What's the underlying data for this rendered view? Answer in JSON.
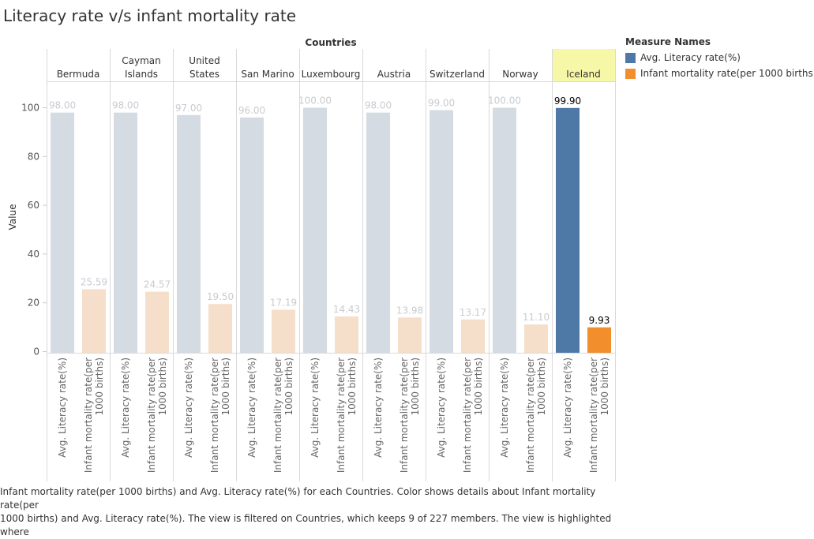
{
  "title": "Literacy rate v/s infant mortality rate",
  "header_label": "Countries",
  "colors": {
    "literacy": "#4e79a7",
    "mortality": "#f28e2b",
    "literacy_faded": "#d4dbe3",
    "mortality_faded": "#f5dfcb",
    "highlight_header": "#f7f7a8"
  },
  "legend": {
    "title": "Measure Names",
    "items": [
      {
        "label": "Avg. Literacy rate(%)",
        "color": "#4e79a7"
      },
      {
        "label": "Infant mortality rate(per 1000 births)",
        "color": "#f28e2b"
      }
    ]
  },
  "caption": [
    "Infant mortality rate(per 1000 births) and Avg. Literacy rate(%) for each Countries.  Color shows details about Infant mortality rate(per",
    "1000 births) and Avg. Literacy rate(%). The view is filtered on Countries, which keeps 9 of 227 members. The view is highlighted where"
  ],
  "chart_data": {
    "type": "bar",
    "title": "Literacy rate v/s infant mortality rate",
    "ylabel": "Value",
    "ylim": [
      0,
      110
    ],
    "yticks": [
      0,
      20,
      40,
      60,
      80,
      100
    ],
    "grid": false,
    "legend_position": "right",
    "highlighted_category": "Iceland",
    "categories": [
      "Bermuda",
      "Cayman Islands",
      "United States",
      "San Marino",
      "Luxembourg",
      "Austria",
      "Switzerland",
      "Norway",
      "Iceland"
    ],
    "series": [
      {
        "name": "Avg. Literacy rate(%)",
        "values": [
          98.0,
          98.0,
          97.0,
          96.0,
          100.0,
          98.0,
          99.0,
          100.0,
          99.9
        ],
        "labels": [
          "98.00",
          "98.00",
          "97.00",
          "96.00",
          "100.00",
          "98.00",
          "99.00",
          "100.00",
          "99.90"
        ]
      },
      {
        "name": "Infant mortality rate(per 1000 births)",
        "values": [
          25.59,
          24.57,
          19.5,
          17.19,
          14.43,
          13.98,
          13.17,
          11.1,
          9.93
        ],
        "labels": [
          "25.59",
          "24.57",
          "19.50",
          "17.19",
          "14.43",
          "13.98",
          "13.17",
          "11.10",
          "9.93"
        ]
      }
    ],
    "bar_axis_labels": [
      [
        "Avg. Literacy rate(%)"
      ],
      [
        "Infant mortality rate(per",
        "1000 births)"
      ]
    ]
  }
}
